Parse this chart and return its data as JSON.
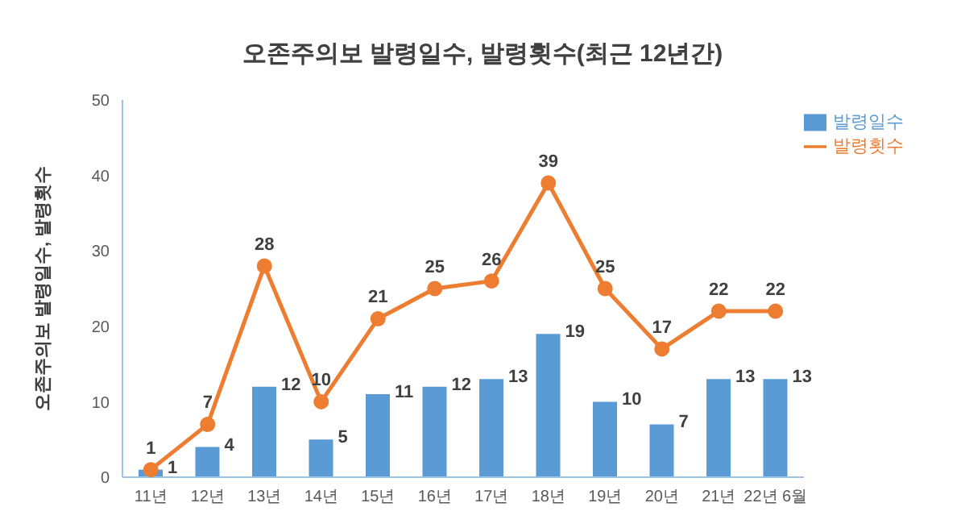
{
  "chart_data": {
    "type": "bar",
    "title": "오존주의보  발령일수, 발령횟수(최근 12년간)",
    "ylabel": "오존주의보 발령일수, 발령횟수",
    "categories": [
      "11년",
      "12년",
      "13년",
      "14년",
      "15년",
      "16년",
      "17년",
      "18년",
      "19년",
      "20년",
      "21년",
      "22년 6월"
    ],
    "series": [
      {
        "name": "발령일수",
        "color": "#5b9bd5",
        "values": [
          1,
          4,
          12,
          5,
          11,
          12,
          13,
          19,
          10,
          7,
          13,
          13
        ]
      },
      {
        "name": "발령횟수",
        "type": "line",
        "color": "#ed7d31",
        "values": [
          1,
          7,
          28,
          10,
          21,
          25,
          26,
          39,
          25,
          17,
          22,
          22
        ]
      }
    ],
    "ylim": [
      0,
      50
    ],
    "yticks": [
      0,
      10,
      20,
      30,
      40,
      50
    ],
    "grid": false,
    "legend": "top right",
    "data_labels": true,
    "marker": "circle",
    "line_style": "solid"
  }
}
